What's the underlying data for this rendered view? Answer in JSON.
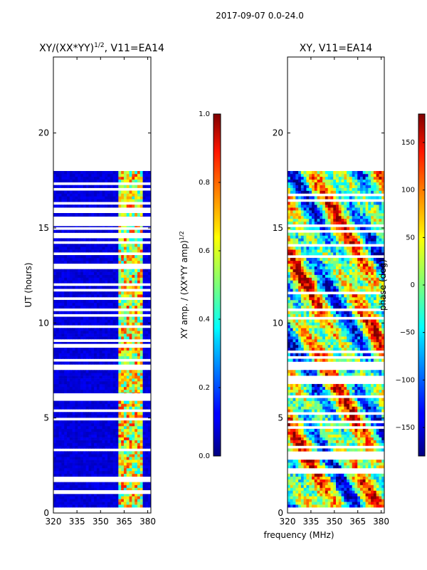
{
  "figure": {
    "suptitle": "2017-09-07 0.0-24.0",
    "xlabel": "frequency (MHz)"
  },
  "chart_data": [
    {
      "type": "heatmap",
      "id": "amp",
      "title_main": "XY/(XX*YY)",
      "title_sup": "1/2",
      "title_tail": ", V11=EA14",
      "xlabel": "frequency (MHz)",
      "ylabel": "UT (hours)",
      "xlim": [
        320,
        382
      ],
      "ylim": [
        0,
        24
      ],
      "xticks": [
        320,
        335,
        350,
        365,
        380
      ],
      "yticks": [
        0,
        5,
        10,
        15,
        20
      ],
      "data_coverage_hours": [
        0.3,
        18.0
      ],
      "gap_band_hours": [
        [
          15.1,
          15.6
        ],
        [
          6.0,
          6.3
        ],
        [
          8.7,
          8.9
        ],
        [
          1.0,
          1.2
        ]
      ],
      "bright_channels_mhz": [
        [
          362,
          365
        ],
        [
          368,
          370
        ],
        [
          373,
          376
        ]
      ],
      "colorbar": {
        "label_main": "XY amp. / (XX*YY amp)",
        "label_sup": "1/2",
        "range": [
          0.0,
          1.0
        ],
        "ticks": [
          "0.0",
          "0.2",
          "0.4",
          "0.6",
          "0.8",
          "1.0"
        ]
      }
    },
    {
      "type": "heatmap",
      "id": "phase",
      "title": "XY, V11=EA14",
      "xlabel": "frequency (MHz)",
      "xlim": [
        320,
        382
      ],
      "ylim": [
        0,
        24
      ],
      "xticks": [
        320,
        335,
        350,
        365,
        380
      ],
      "yticks": [
        0,
        5,
        10,
        15,
        20
      ],
      "data_coverage_hours": [
        0.3,
        18.0
      ],
      "colorbar": {
        "label": "phase (deg)",
        "range": [
          -180,
          180
        ],
        "ticks": [
          "150",
          "100",
          "50",
          "0",
          "−50",
          "−100",
          "−150"
        ]
      }
    }
  ]
}
